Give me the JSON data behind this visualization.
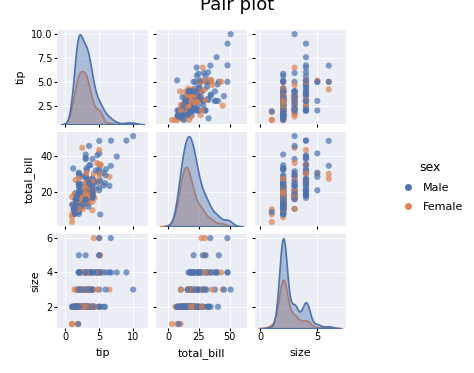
{
  "title": "Pair plot",
  "title_fontsize": 13,
  "variables": [
    "tip",
    "total_bill",
    "size"
  ],
  "male_color": "#4c72b0",
  "female_color": "#dd8452",
  "background_color": "#eaeef4",
  "legend_title": "sex",
  "legend_male": "Male",
  "legend_female": "Female",
  "marker_size": 20,
  "figsize": [
    4.74,
    3.73
  ],
  "dpi": 100
}
